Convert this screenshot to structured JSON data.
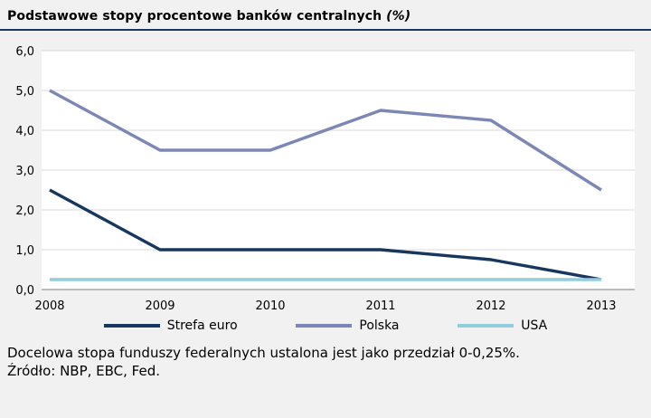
{
  "title": "Podstawowe stopy procentowe banków centralnych",
  "title_suffix": "(%)",
  "chart_data": {
    "type": "line",
    "x": [
      "2008",
      "2009",
      "2010",
      "2011",
      "2012",
      "2013"
    ],
    "series": [
      {
        "name": "Strefa euro",
        "color": "#17375e",
        "values": [
          2.5,
          1.0,
          1.0,
          1.0,
          0.75,
          0.25
        ]
      },
      {
        "name": "Polska",
        "color": "#7d87b5",
        "values": [
          5.0,
          3.5,
          3.5,
          4.5,
          4.25,
          2.5
        ]
      },
      {
        "name": "USA",
        "color": "#93cddd",
        "values": [
          0.25,
          0.25,
          0.25,
          0.25,
          0.25,
          0.25
        ]
      }
    ],
    "ylim": [
      0,
      6
    ],
    "ytick_step": 1,
    "yticks_labels": [
      "0,0",
      "1,0",
      "2,0",
      "3,0",
      "4,0",
      "5,0",
      "6,0"
    ],
    "grid": true,
    "legend_position": "bottom",
    "colors": {
      "plot_background": "#ffffff",
      "gridline": "#d9d9d9",
      "axis_line": "#7f7f7f",
      "divider": "#17375e"
    }
  },
  "footer": {
    "note": "Docelowa stopa funduszy federalnych ustalona jest jako przedział 0-0,25%.",
    "source": "Źródło: NBP, EBC, Fed."
  }
}
